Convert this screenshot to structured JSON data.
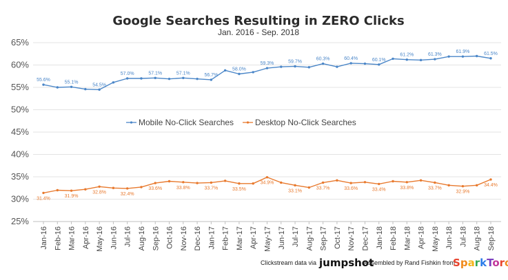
{
  "chart_data": {
    "type": "line",
    "title": "Google Searches Resulting in ZERO Clicks",
    "subtitle": "Jan. 2016 - Sep. 2018",
    "ylim": [
      25,
      65
    ],
    "yticks": [
      "25%",
      "30%",
      "35%",
      "40%",
      "45%",
      "50%",
      "55%",
      "60%",
      "65%"
    ],
    "ytick_values": [
      25,
      30,
      35,
      40,
      45,
      50,
      55,
      60,
      65
    ],
    "grid": true,
    "legend_position": "center",
    "categories": [
      "Jan-16",
      "Feb-16",
      "Mar-16",
      "Apr-16",
      "May-16",
      "Jun-16",
      "Jul-16",
      "Aug-16",
      "Sep-16",
      "Oct-16",
      "Nov-16",
      "Dec-16",
      "Jan-17",
      "Feb-17",
      "Mar-17",
      "Apr-17",
      "May-17",
      "Jun-17",
      "Jul-17",
      "Aug-17",
      "Sep-17",
      "Oct-17",
      "Nov-17",
      "Dec-17",
      "Jan-18",
      "Feb-18",
      "Mar-18",
      "Apr-18",
      "May-18",
      "Jun-18",
      "Jul-18",
      "Aug-18",
      "Sep-18"
    ],
    "series": [
      {
        "name": "Mobile No-Click Searches",
        "color": "#4a86c8",
        "values": [
          55.6,
          55.0,
          55.1,
          54.6,
          54.5,
          56.1,
          57.0,
          57.0,
          57.1,
          56.9,
          57.1,
          56.9,
          56.7,
          58.8,
          58.0,
          58.4,
          59.3,
          59.6,
          59.7,
          59.5,
          60.3,
          59.6,
          60.4,
          60.3,
          60.1,
          61.4,
          61.2,
          61.1,
          61.3,
          61.9,
          61.9,
          62.0,
          61.5
        ],
        "labels": {
          "0": "55.6%",
          "2": "55.1%",
          "4": "54.5%",
          "6": "57.0%",
          "8": "57.1%",
          "10": "57.1%",
          "12": "56.7%",
          "14": "58.0%",
          "16": "59.3%",
          "18": "59.7%",
          "20": "60.3%",
          "22": "60.4%",
          "24": "60.1%",
          "26": "61.2%",
          "28": "61.3%",
          "30": "61.9%",
          "32": "61.5%"
        }
      },
      {
        "name": "Desktop No-Click Searches",
        "color": "#e8792d",
        "values": [
          31.4,
          32.0,
          31.9,
          32.2,
          32.8,
          32.5,
          32.4,
          32.7,
          33.6,
          34.0,
          33.8,
          33.6,
          33.7,
          34.1,
          33.5,
          33.5,
          34.9,
          33.7,
          33.1,
          32.6,
          33.7,
          34.2,
          33.6,
          33.8,
          33.4,
          34.0,
          33.8,
          34.2,
          33.7,
          33.1,
          32.9,
          33.1,
          34.4
        ],
        "labels": {
          "0": "31.4%",
          "2": "31.9%",
          "4": "32.8%",
          "6": "32.4%",
          "8": "33.6%",
          "10": "33.8%",
          "12": "33.7%",
          "14": "33.5%",
          "16": "34.9%",
          "18": "33.1%",
          "20": "33.7%",
          "22": "33.6%",
          "24": "33.4%",
          "26": "33.8%",
          "28": "33.7%",
          "30": "32.9%",
          "32": "34.4%"
        }
      }
    ]
  },
  "footer": {
    "clickstream_text": "Clickstream data via",
    "jumpshot": "jumpshot",
    "assembled_text": "Assembled by Rand Fishkin from",
    "sparktoro_letters": [
      {
        "ch": "S",
        "color": "#e8432d"
      },
      {
        "ch": "p",
        "color": "#f08a1d"
      },
      {
        "ch": "a",
        "color": "#f4b41a"
      },
      {
        "ch": "r",
        "color": "#34a853"
      },
      {
        "ch": "k",
        "color": "#2b7de9"
      },
      {
        "ch": "T",
        "color": "#7b3fbf"
      },
      {
        "ch": "o",
        "color": "#c2379b"
      },
      {
        "ch": "r",
        "color": "#e8432d"
      },
      {
        "ch": "o",
        "color": "#f08a1d"
      }
    ]
  }
}
